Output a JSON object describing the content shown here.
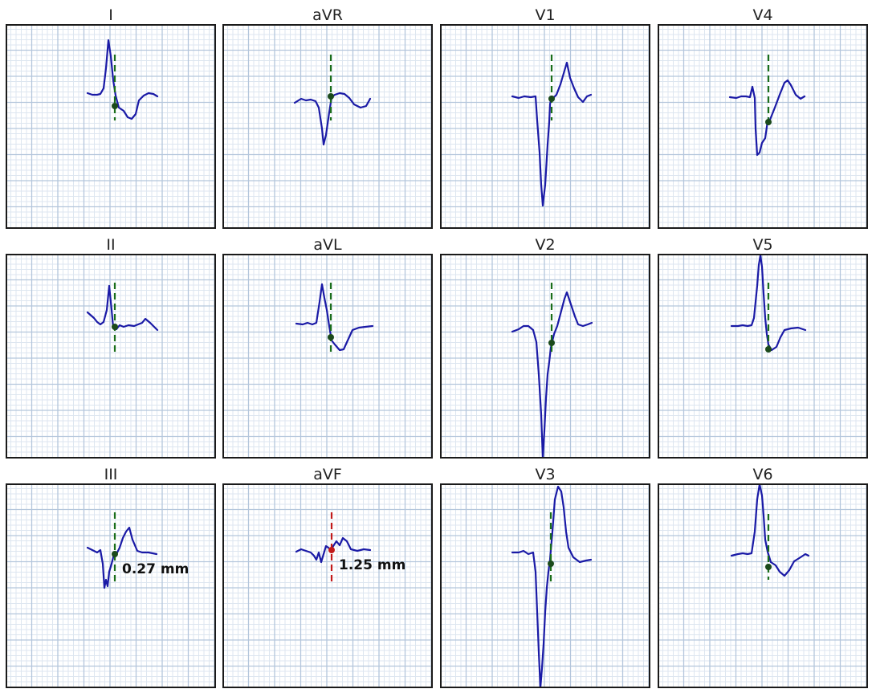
{
  "colors": {
    "trace": "#1a1aa6",
    "marker_normal": "#1a6e1a",
    "marker_elevated": "#c21a1a",
    "grid_major": "#b4c6dc",
    "grid_minor": "#dde6f0",
    "border": "#1a1a1a"
  },
  "leads": [
    {
      "name": "I",
      "marker": "normal",
      "measurement": ""
    },
    {
      "name": "aVR",
      "marker": "normal",
      "measurement": ""
    },
    {
      "name": "V1",
      "marker": "normal",
      "measurement": ""
    },
    {
      "name": "V4",
      "marker": "normal",
      "measurement": ""
    },
    {
      "name": "II",
      "marker": "normal",
      "measurement": ""
    },
    {
      "name": "aVL",
      "marker": "normal",
      "measurement": ""
    },
    {
      "name": "V2",
      "marker": "normal",
      "measurement": ""
    },
    {
      "name": "V5",
      "marker": "normal",
      "measurement": ""
    },
    {
      "name": "III",
      "marker": "normal",
      "measurement": "0.27 mm"
    },
    {
      "name": "aVF",
      "marker": "elevated",
      "measurement": "1.25 mm"
    },
    {
      "name": "V3",
      "marker": "normal",
      "measurement": ""
    },
    {
      "name": "V6",
      "marker": "normal",
      "measurement": ""
    }
  ]
}
